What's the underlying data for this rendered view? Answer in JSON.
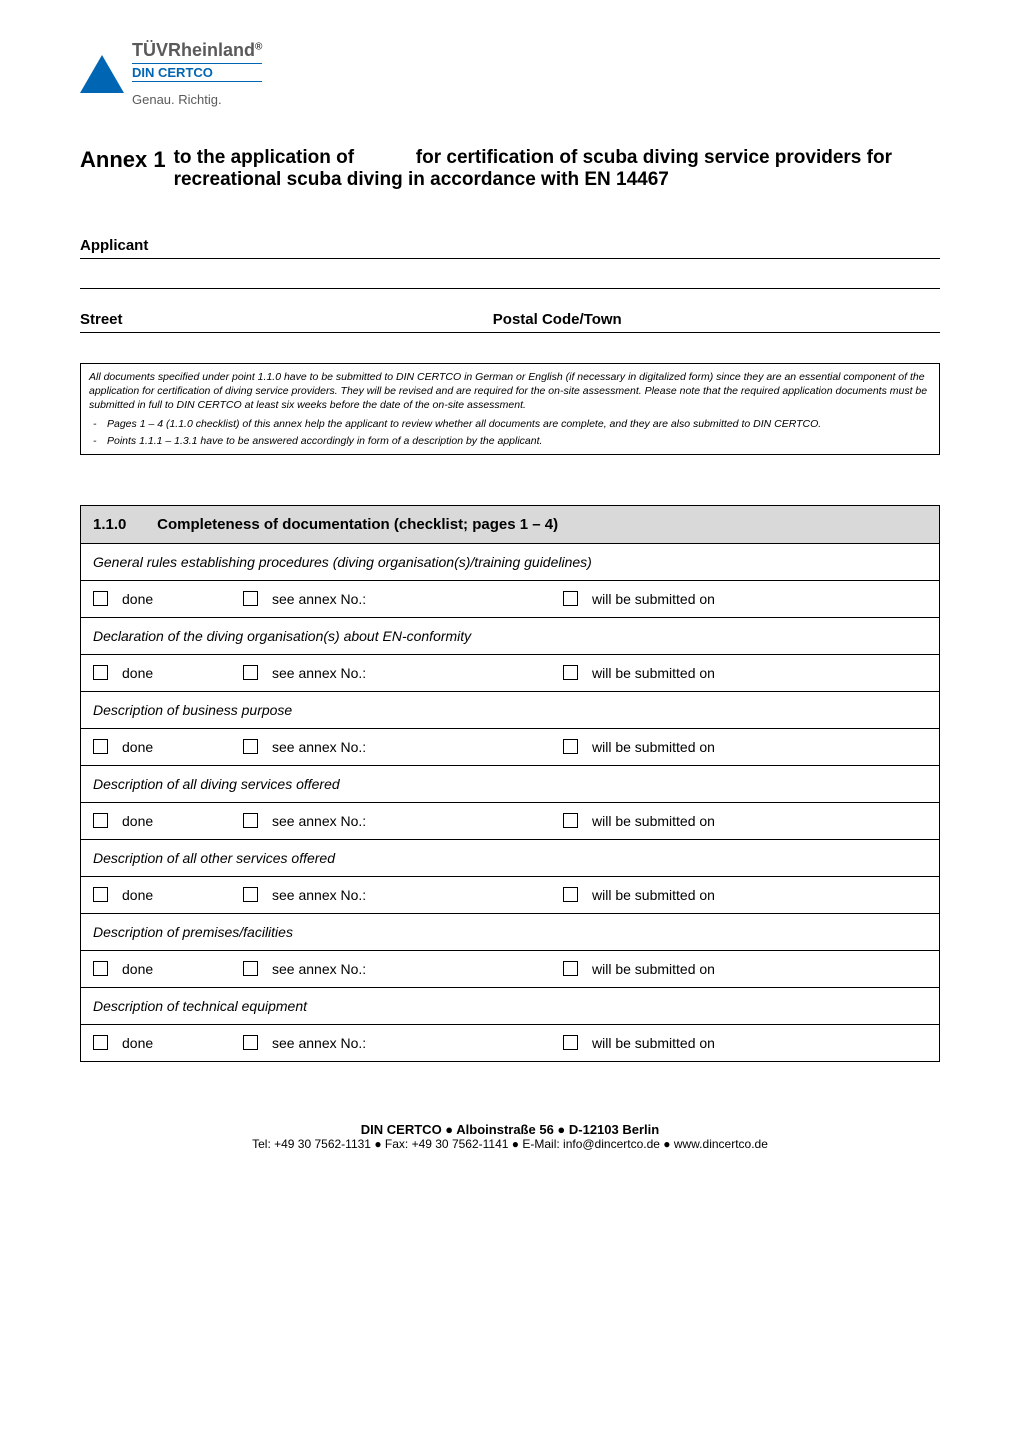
{
  "logo": {
    "tuv": "TÜV",
    "rheinland": "Rheinland",
    "registered": "®",
    "din_certco": "DIN CERTCO",
    "tagline": "Genau. Richtig."
  },
  "title": {
    "annex": "Annex 1",
    "line1": "to the application of",
    "line2": "for certification of scuba diving service providers for recreational scuba diving in accordance with EN 14467"
  },
  "fields": {
    "applicant": "Applicant",
    "street": "Street",
    "postal": "Postal Code/Town"
  },
  "notice": {
    "main": "All documents specified under point 1.1.0 have to be submitted to DIN CERTCO in German or English (if necessary in digitalized form) since they are an essential component of the application for certification of diving service providers. They will be revised and are required for the on-site assessment. Please note that the required application documents must be submitted in full to DIN CERTCO at least six weeks before the date of the on-site assessment.",
    "bullet1": "Pages 1 – 4 (1.1.0 checklist) of this annex help the applicant to review whether all documents are complete, and they are also submitted to DIN CERTCO.",
    "bullet2": "Points 1.1.1 – 1.3.1 have to be answered accordingly in form of a description by the applicant."
  },
  "checklist": {
    "header_num": "1.1.0",
    "header_title": "Completeness of documentation (checklist; pages 1 – 4)",
    "done_label": "done",
    "annex_label": "see annex No.:",
    "submit_label": "will be submitted on",
    "items": [
      "General rules establishing procedures (diving organisation(s)/training guidelines)",
      "Declaration of the diving organisation(s) about EN-conformity",
      "Description of business purpose",
      "Description of all diving services offered",
      "Description of all other services offered",
      "Description of premises/facilities",
      "Description of technical equipment"
    ]
  },
  "footer": {
    "line1": "DIN CERTCO ● Alboinstraße 56 ● D-12103 Berlin",
    "line2": "Tel: +49 30 7562-1131 ● Fax: +49 30 7562-1141 ● E-Mail: info@dincertco.de ● www.dincertco.de"
  }
}
